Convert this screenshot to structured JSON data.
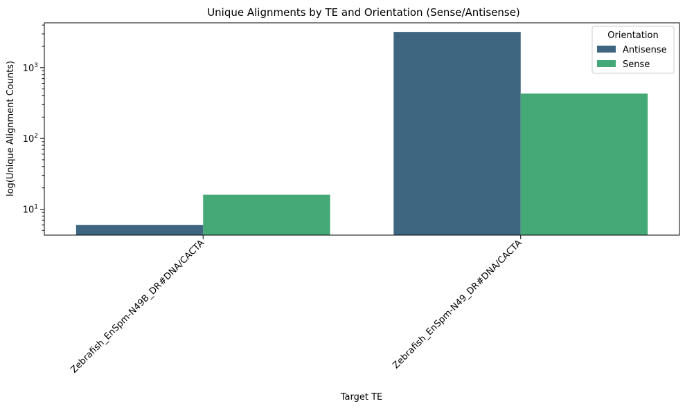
{
  "chart_data": {
    "type": "bar",
    "title": "Unique Alignments by TE and Orientation (Sense/Antisense)",
    "xlabel": "Target TE",
    "ylabel": "log(Unique Alignment Counts)",
    "yscale": "log",
    "ylim": [
      4.3,
      4300
    ],
    "categories": [
      "Zebrafish_EnSpm-N49B_DR#DNA/CACTA",
      "Zebrafish_EnSpm-N49_DR#DNA/CACTA"
    ],
    "series": [
      {
        "name": "Antisense",
        "color": "#3e6680",
        "values": [
          6,
          3200
        ]
      },
      {
        "name": "Sense",
        "color": "#45a877",
        "values": [
          16,
          430
        ]
      }
    ],
    "yticks": [
      {
        "value": 10,
        "label": "10",
        "exp": "1"
      },
      {
        "value": 100,
        "label": "10",
        "exp": "2"
      },
      {
        "value": 1000,
        "label": "10",
        "exp": "3"
      }
    ],
    "legend": {
      "title": "Orientation",
      "position": "top-right"
    },
    "grid": false
  }
}
